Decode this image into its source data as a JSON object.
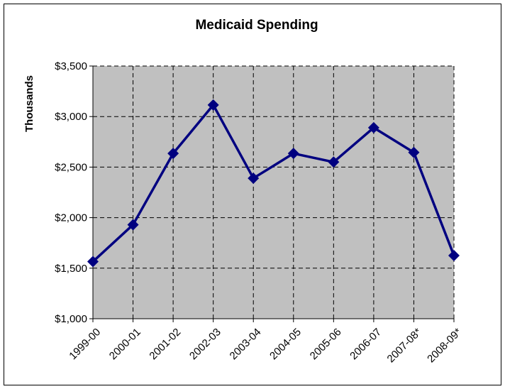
{
  "chart_data": {
    "type": "line",
    "title": "Medicaid Spending",
    "xlabel": "",
    "ylabel": "Thousands",
    "categories": [
      "1999-00",
      "2000-01",
      "2001-02",
      "2002-03",
      "2003-04",
      "2004-05",
      "2005-06",
      "2006-07",
      "2007-08*",
      "2008-09*"
    ],
    "series": [
      {
        "values": [
          1565,
          1930,
          2635,
          3115,
          2390,
          2635,
          2550,
          2890,
          2645,
          1625
        ]
      }
    ],
    "ylim": [
      1000,
      3500
    ],
    "y_ticks": [
      1000,
      1500,
      2000,
      2500,
      3000,
      3500
    ],
    "y_tick_labels": [
      "$1,000",
      "$1,500",
      "$2,000",
      "$2,500",
      "$3,000",
      "$3,500"
    ],
    "grid": true,
    "grid_style": "dashed",
    "legend": "none",
    "colors": {
      "line": "#000080",
      "plot_background": "#c0c0c0",
      "grid": "#000000"
    },
    "marker": "diamond-icon"
  }
}
